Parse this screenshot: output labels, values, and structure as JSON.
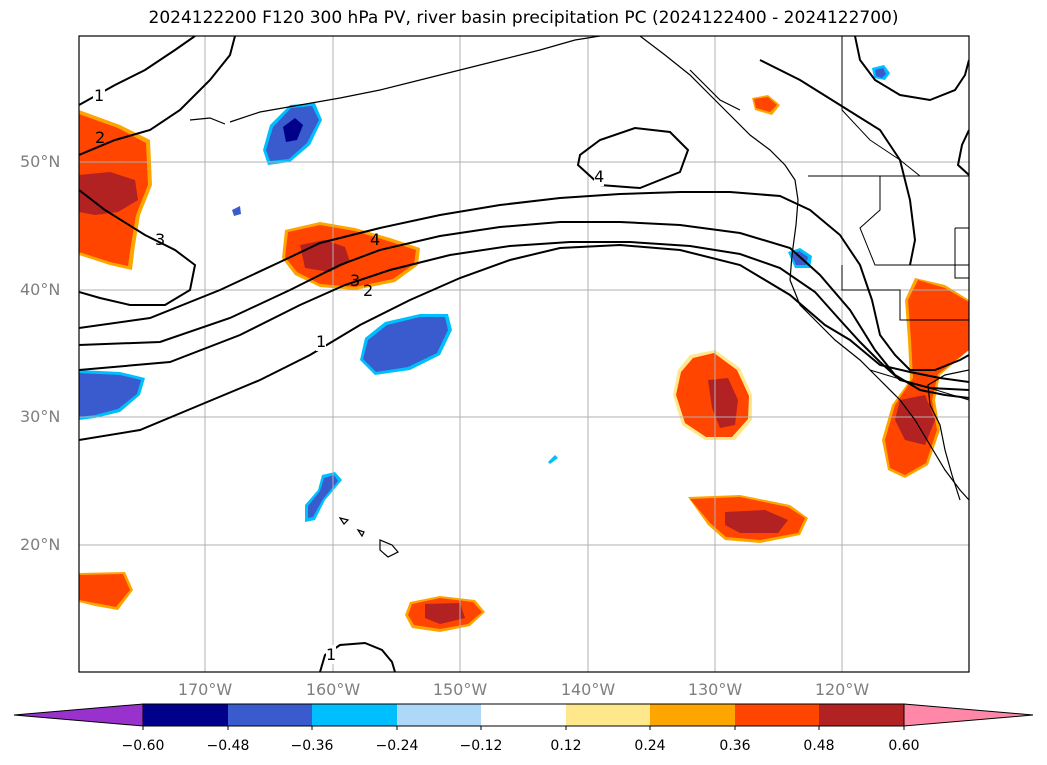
{
  "title": "2024122200 F120 300 hPa PV, river basin precipitation PC (2024122400 - 2024122700)",
  "map": {
    "lat_labels": [
      "50°N",
      "40°N",
      "30°N",
      "20°N"
    ],
    "lon_labels": [
      "170°W",
      "160°W",
      "150°W",
      "140°W",
      "130°W",
      "120°W"
    ],
    "contour_labels": [
      "1",
      "2",
      "3",
      "4",
      "4",
      "3",
      "2",
      "1",
      "1"
    ],
    "colors": {
      "strong_positive": "#b22222",
      "positive": "#ff4500",
      "weak_positive": "#ffa500",
      "light_positive": "#ffe88c",
      "negative": "#3a5bcd",
      "strong_negative": "#00008b",
      "cyan": "#00bfff",
      "light_blue": "#add8ff"
    }
  },
  "colorbar": {
    "labels": [
      "−0.60",
      "−0.48",
      "−0.36",
      "−0.24",
      "−0.12",
      "0.12",
      "0.24",
      "0.36",
      "0.48",
      "0.60"
    ],
    "colors": [
      "#9932cc",
      "#00008b",
      "#3a5bcd",
      "#00bfff",
      "#add8f8",
      "#ffffff",
      "#ffe88c",
      "#ffa500",
      "#ff4500",
      "#b22222",
      "#ff88a8"
    ]
  }
}
